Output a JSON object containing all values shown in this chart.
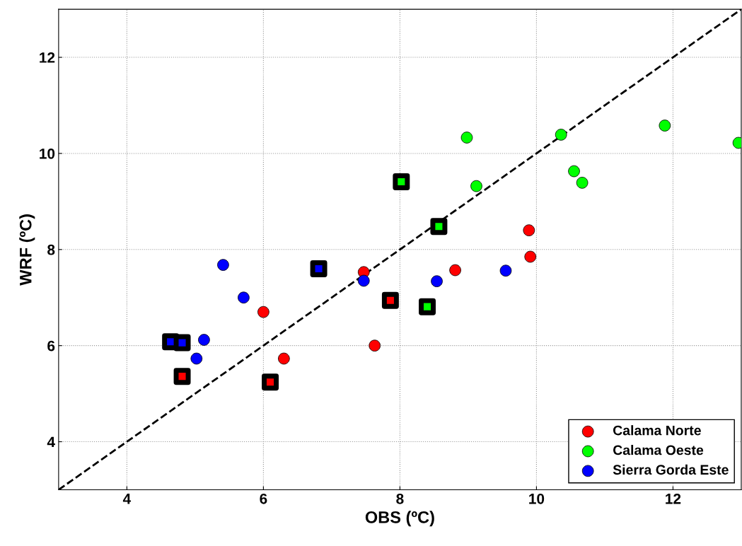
{
  "chart_data": {
    "type": "scatter",
    "xlabel": "OBS (ºC)",
    "ylabel": "WRF (ºC)",
    "xlim": [
      3,
      13
    ],
    "ylim": [
      3,
      13
    ],
    "xticks": [
      4,
      6,
      8,
      10,
      12
    ],
    "yticks": [
      4,
      6,
      8,
      10,
      12
    ],
    "grid": true,
    "legend": "bottom right",
    "series": [
      {
        "type": "line",
        "color": "#000000",
        "line_style": "dashed",
        "marker": "none",
        "x": [
          3,
          13
        ],
        "values": [
          3,
          13
        ]
      },
      {
        "name": "Calama Norte",
        "color": "#ff0000",
        "marker": "circle",
        "x": [
          6.0,
          6.3,
          7.47,
          7.63,
          8.81,
          9.89,
          9.91
        ],
        "values": [
          6.7,
          5.73,
          7.53,
          6.0,
          7.57,
          8.4,
          7.85
        ]
      },
      {
        "name": "Calama Oeste",
        "color": "#00ff00",
        "marker": "circle",
        "x": [
          8.98,
          9.12,
          10.36,
          10.55,
          10.67,
          11.88,
          12.96
        ],
        "values": [
          10.33,
          9.32,
          10.39,
          9.63,
          9.39,
          10.58,
          10.22
        ]
      },
      {
        "name": "Sierra Gorda Este",
        "color": "#0000ff",
        "marker": "circle",
        "x": [
          5.41,
          5.71,
          5.13,
          5.02,
          7.47,
          8.54,
          9.55
        ],
        "values": [
          7.68,
          7.0,
          6.12,
          5.73,
          7.35,
          7.34,
          7.56
        ]
      },
      {
        "color": "#ff0000",
        "marker": "square",
        "x": [
          4.81,
          6.1,
          7.86
        ],
        "values": [
          5.36,
          5.24,
          6.94
        ]
      },
      {
        "color": "#00ff00",
        "marker": "square",
        "x": [
          8.02,
          8.57,
          8.4
        ],
        "values": [
          9.41,
          8.48,
          6.81
        ]
      },
      {
        "color": "#0000ff",
        "marker": "square",
        "x": [
          4.64,
          4.81,
          6.81
        ],
        "values": [
          6.08,
          6.06,
          7.6
        ]
      }
    ]
  }
}
